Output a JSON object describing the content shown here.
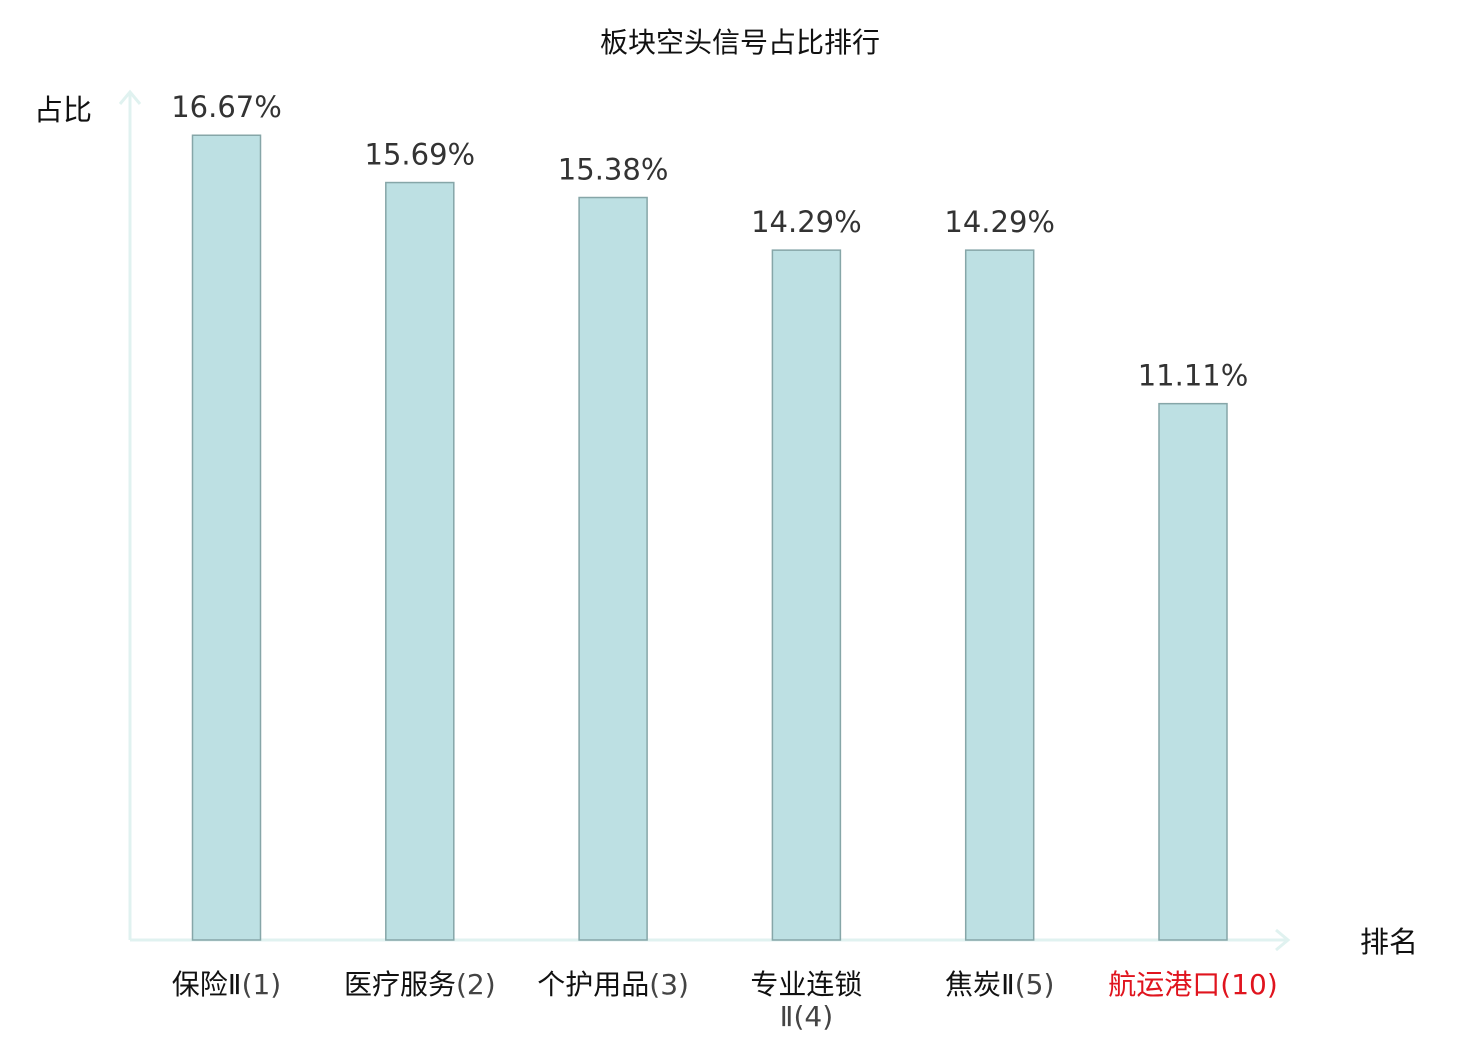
{
  "chart_data": {
    "type": "bar",
    "title": "板块空头信号占比排行",
    "xlabel": "排名",
    "ylabel": "占比",
    "categories": [
      {
        "name": "保险Ⅱ",
        "rank": "(1)",
        "highlight": false
      },
      {
        "name": "医疗服务",
        "rank": "(2)",
        "highlight": false
      },
      {
        "name": "个护用品",
        "rank": "(3)",
        "highlight": false
      },
      {
        "name": "专业连锁Ⅱ",
        "rank": "(4)",
        "highlight": false
      },
      {
        "name": "焦炭Ⅱ",
        "rank": "(5)",
        "highlight": false
      },
      {
        "name": "航运港口",
        "rank": "(10)",
        "highlight": true
      }
    ],
    "values": [
      16.67,
      15.69,
      15.38,
      14.29,
      14.29,
      11.11
    ],
    "value_labels": [
      "16.67%",
      "15.69%",
      "15.38%",
      "14.29%",
      "14.29%",
      "11.11%"
    ],
    "ylim": [
      0,
      17.4
    ],
    "grid": false,
    "colors": {
      "bar_fill": "#bde0e3",
      "bar_stroke": "#86a6a8",
      "axis": "#e0f2f0",
      "highlight_text": "#e0141e",
      "normal_text": "#111111",
      "rank_text": "#444444"
    }
  }
}
